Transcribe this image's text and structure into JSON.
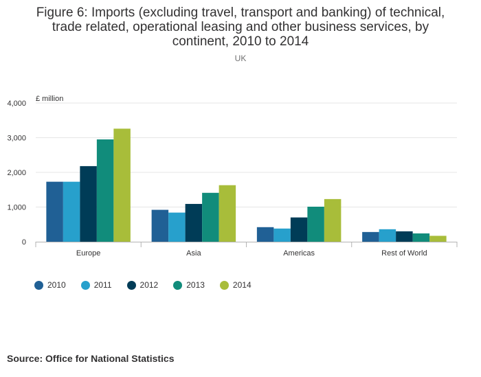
{
  "chart_data": {
    "type": "bar",
    "title": "Figure 6: Imports (excluding travel, transport and banking) of technical, trade related, operational leasing and other business services, by continent, 2010 to 2014",
    "title_lines": [
      "Figure 6: Imports (excluding travel, transport and banking) of technical,",
      "trade related, operational leasing and other business services, by",
      "continent, 2010 to 2014"
    ],
    "subtitle": "UK",
    "ylabel": "£ million",
    "xlabel": "",
    "ylim": [
      0,
      4000
    ],
    "yticks": [
      0,
      1000,
      2000,
      3000,
      4000
    ],
    "ytick_labels": [
      "0",
      "1,000",
      "2,000",
      "3,000",
      "4,000"
    ],
    "categories": [
      "Europe",
      "Asia",
      "Americas",
      "Rest of World"
    ],
    "series": [
      {
        "name": "2010",
        "color": "#206095",
        "values": [
          1730,
          920,
          420,
          280
        ]
      },
      {
        "name": "2011",
        "color": "#27a0cc",
        "values": [
          1730,
          840,
          380,
          360
        ]
      },
      {
        "name": "2012",
        "color": "#003c57",
        "values": [
          2180,
          1090,
          700,
          300
        ]
      },
      {
        "name": "2013",
        "color": "#118c7b",
        "values": [
          2950,
          1410,
          1010,
          240
        ]
      },
      {
        "name": "2014",
        "color": "#a8bd3a",
        "values": [
          3260,
          1630,
          1230,
          170
        ]
      }
    ],
    "grid": true,
    "legend_position": "bottom-left"
  },
  "source": "Source: Office for National Statistics"
}
